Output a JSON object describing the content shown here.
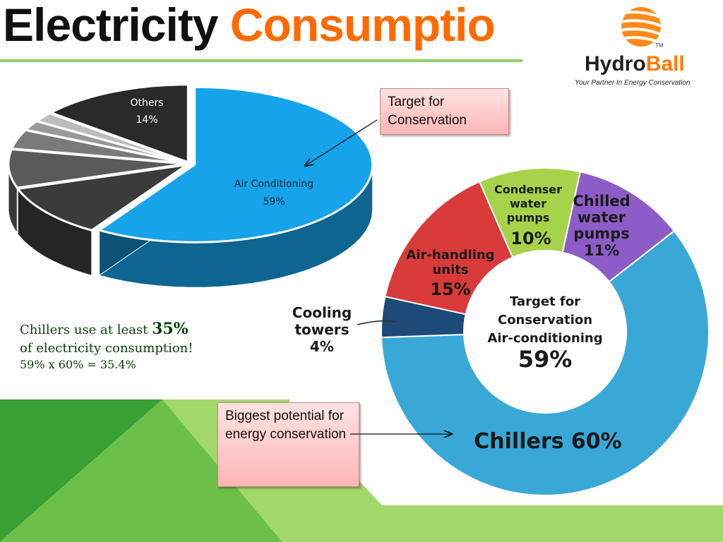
{
  "title": {
    "part1": "Electricity",
    "part2": "Consumptio"
  },
  "logo": {
    "brand_a": "Hydro",
    "brand_b": "Ball",
    "tm": "TM",
    "tagline": "Your Partner In Energy Conservation"
  },
  "callouts": {
    "target": "Target for Conservation",
    "biggest": "Biggest potential for energy conservation"
  },
  "note": {
    "line1_prefix": "Chillers use at least ",
    "line1_value": "35%",
    "line2": "of electricity consumption!",
    "line3": "59% x 60% = 35.4%"
  },
  "colors": {
    "accent_orange": "#ff6a00",
    "green_dark": "#3aa035",
    "green_light": "#8ed26b",
    "callout_pink": "#ffc8c8",
    "ac_blue": "#1aa0e6"
  },
  "chart_data": [
    {
      "type": "pie",
      "style": "3d-exploded",
      "slices": [
        {
          "label": "Air Conditioning",
          "value_label": "59%",
          "value": 59,
          "color": "#16a3ea"
        },
        {
          "label": "",
          "value": 11,
          "color": "#3b3b3b"
        },
        {
          "label": "",
          "value": 8,
          "color": "#5a5a5a"
        },
        {
          "label": "",
          "value": 4,
          "color": "#7a7a7a"
        },
        {
          "label": "",
          "value": 2,
          "color": "#999999"
        },
        {
          "label": "",
          "value": 2,
          "color": "#bcbcbc"
        },
        {
          "label": "Others",
          "value_label": "14%",
          "value": 14,
          "color": "#2a2a2a"
        }
      ]
    },
    {
      "type": "pie",
      "style": "donut",
      "center_text": [
        "Target for",
        "Conservation",
        "Air-conditioning"
      ],
      "center_value": "59%",
      "slices": [
        {
          "label": "Chillers",
          "value_label": "60%",
          "value": 60,
          "color": "#3aa8d6"
        },
        {
          "label": "Cooling towers",
          "value_label": "4%",
          "value": 4,
          "color": "#1d4a78"
        },
        {
          "label": "Air-handling units",
          "value_label": "15%",
          "value": 15,
          "color": "#d93a3a"
        },
        {
          "label": "Condenser water pumps",
          "value_label": "10%",
          "value": 10,
          "color": "#a6d34a"
        },
        {
          "label": "Chilled water pumps",
          "value_label": "11%",
          "value": 11,
          "color": "#8d5cc9"
        }
      ]
    }
  ]
}
